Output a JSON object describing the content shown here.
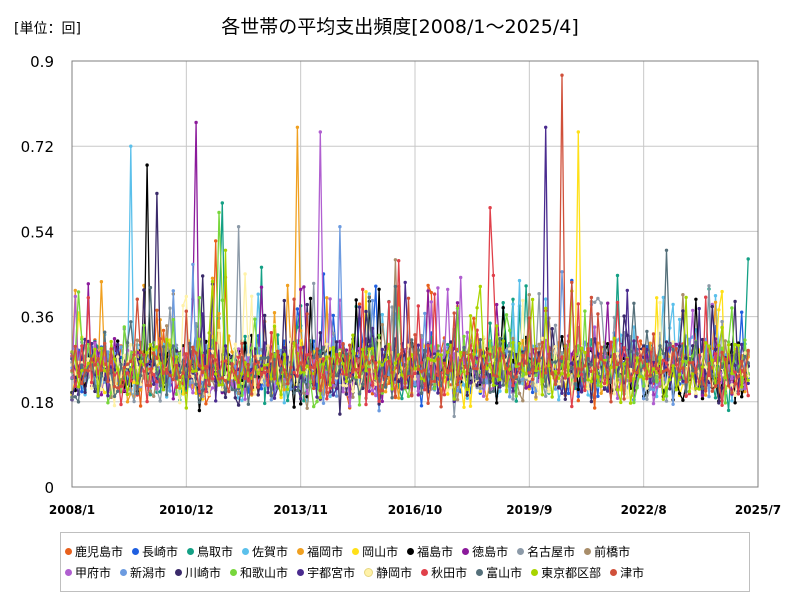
{
  "unit_label": "[単位：回]",
  "chart_data": {
    "type": "line",
    "title": "各世帯の平均支出頻度[2008/1～2025/4]",
    "xlabel": "",
    "ylabel": "",
    "ylim": [
      0,
      0.9
    ],
    "yticks": [
      "0",
      "0.18",
      "0.36",
      "0.54",
      "0.72",
      "0.9"
    ],
    "xticks": [
      "2008/1",
      "2010/12",
      "2013/11",
      "2016/10",
      "2019/9",
      "2022/8",
      "2025/7"
    ],
    "grid": true,
    "legend_position": "bottom",
    "series": [
      {
        "name": "鹿児島市",
        "color": "#e8601c",
        "peak": {
          "date": "2011/9",
          "value": 0.52
        }
      },
      {
        "name": "長崎市",
        "color": "#1f5fe0",
        "peak": {
          "date": "2014/6",
          "value": 0.45
        }
      },
      {
        "name": "鳥取市",
        "color": "#14a085",
        "peak": {
          "date": "2011/11",
          "value": 0.6
        }
      },
      {
        "name": "佐賀市",
        "color": "#5bc0eb",
        "peak": {
          "date": "2009/7",
          "value": 0.72
        }
      },
      {
        "name": "福岡市",
        "color": "#f0a020",
        "peak": {
          "date": "2013/10",
          "value": 0.76
        }
      },
      {
        "name": "岡山市",
        "color": "#ffe019",
        "peak": {
          "date": "2020/12",
          "value": 0.75
        }
      },
      {
        "name": "福島市",
        "color": "#000000",
        "peak": {
          "date": "2009/12",
          "value": 0.68
        }
      },
      {
        "name": "徳島市",
        "color": "#8b1a9b",
        "peak": {
          "date": "2011/3",
          "value": 0.77
        }
      },
      {
        "name": "名古屋市",
        "color": "#8c9aa8",
        "peak": {
          "date": "2012/4",
          "value": 0.55
        }
      },
      {
        "name": "前橋市",
        "color": "#a88d6a",
        "peak": {
          "date": "2016/4",
          "value": 0.48
        }
      },
      {
        "name": "甲府市",
        "color": "#b05fd0",
        "peak": {
          "date": "2014/5",
          "value": 0.75
        }
      },
      {
        "name": "新潟市",
        "color": "#6c9be0",
        "peak": {
          "date": "2014/11",
          "value": 0.55
        }
      },
      {
        "name": "川崎市",
        "color": "#3a2a6a",
        "peak": {
          "date": "2010/3",
          "value": 0.62
        }
      },
      {
        "name": "和歌山市",
        "color": "#78d63c",
        "peak": {
          "date": "2011/10",
          "value": 0.58
        }
      },
      {
        "name": "宇都宮市",
        "color": "#4a2b8f",
        "peak": {
          "date": "2020/2",
          "value": 0.76
        }
      },
      {
        "name": "静岡市",
        "color": "#fff2a8",
        "peak": {
          "date": "2012/6",
          "value": 0.45
        }
      },
      {
        "name": "秋田市",
        "color": "#e0404a",
        "peak": {
          "date": "2018/9",
          "value": 0.59
        }
      },
      {
        "name": "富山市",
        "color": "#55707a",
        "peak": {
          "date": "2023/3",
          "value": 0.5
        }
      },
      {
        "name": "東京都区部",
        "color": "#a8d400",
        "peak": {
          "date": "2011/12",
          "value": 0.5
        }
      },
      {
        "name": "津市",
        "color": "#d0503a",
        "peak": {
          "date": "2020/7",
          "value": 0.87
        }
      }
    ]
  }
}
